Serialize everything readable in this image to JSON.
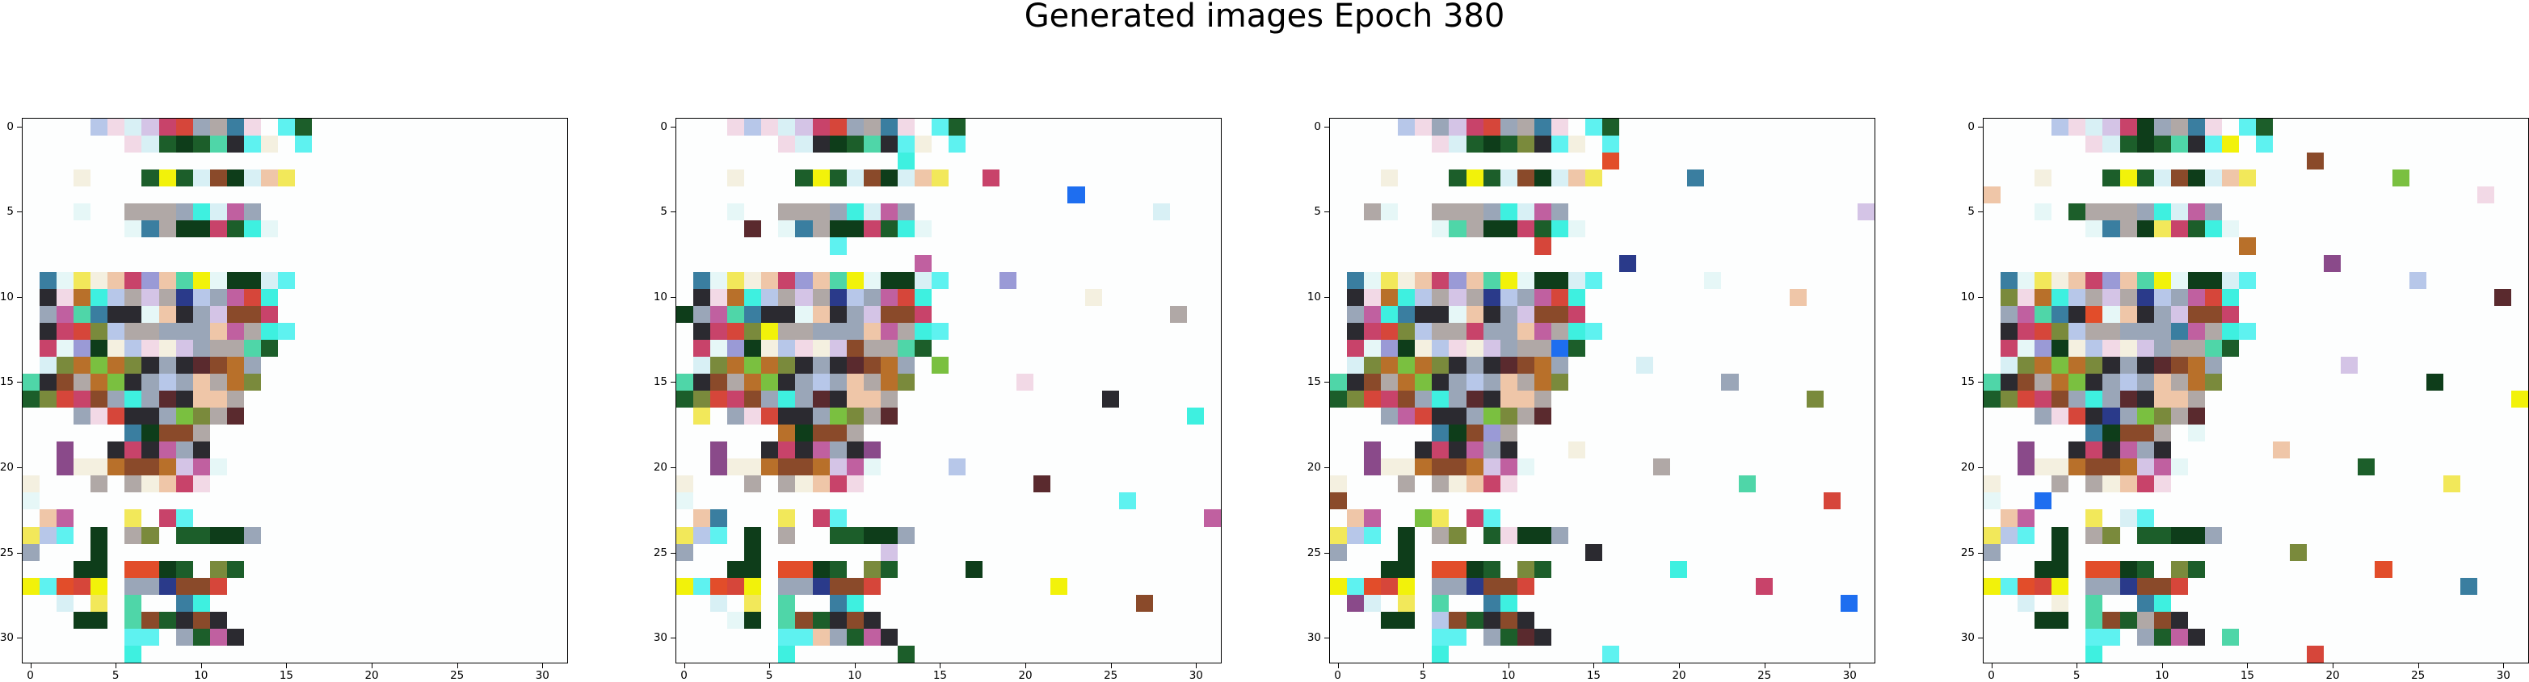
{
  "figure": {
    "suptitle": "Generated images Epoch 380"
  },
  "chart_data": {
    "type": "heatmap",
    "description_note": "",
    "grid": false,
    "panels": 4,
    "image_shape": [
      32,
      32
    ],
    "xlim": [
      -0.5,
      31.5
    ],
    "ylim": [
      31.5,
      -0.5
    ],
    "x_ticks": [
      0,
      5,
      10,
      15,
      20,
      25,
      30
    ],
    "y_ticks": [
      0,
      5,
      10,
      15,
      20,
      25,
      30
    ],
    "x_tick_labels": [
      "0",
      "5",
      "10",
      "15",
      "20",
      "25",
      "30"
    ],
    "y_tick_labels": [
      "0",
      "5",
      "10",
      "15",
      "20",
      "25",
      "30"
    ],
    "palette": [
      "#fdfefe",
      "#e6f7f7",
      "#d8f0f5",
      "#f4f0e0",
      "#f2d9e6",
      "#b7c7e9",
      "#d4c4e6",
      "#efc6a8",
      "#9aa6b8",
      "#b0a8a6",
      "#2b2a30",
      "#5a2a2e",
      "#0e3d1a",
      "#1c5e2a",
      "#7a8a3c",
      "#4fd6a8",
      "#3ef0e0",
      "#5ef2f0",
      "#f2f20a",
      "#f2e85a",
      "#e24d2a",
      "#d6463a",
      "#c8436a",
      "#c060a0",
      "#8a4a2a",
      "#b8702a",
      "#3a7ea0",
      "#2a3a8a",
      "#1e6ef0",
      "#9a9ad6",
      "#7ac040",
      "#8a4a8a"
    ],
    "image_rows": [
      "0000000005040206222108092604001713",
      "0000000000000402131213151017030017",
      "0000000000000000000000000000000000",
      "00000003000000131813022412020719",
      "0000000000000000000000000000000000",
      "00000001000009090908160223080000",
      "00000000000001260912122213160100",
      "00000000000000000000000000000000",
      "000000000000000000000000000000000",
      "0026011903072229071518011212021700",
      "0010042516050906092705082321160000",
      "0008231526101001071008062424220000",
      "0010222114050909080808072309161700",
      "0022012912030504030608090915130000",
      "0002142530251410081011242508000000",
      "1510240925301008050807092514000000",
      "1314212224081608111007070900000000",
      "0000000804211010083014091100000000",
      "0000000000002612242409000000000000",
      "0000310000102210230810000000000000",
      "0000310303252424250623010000000000",
      "0300000009000903072204000000000000",
      "0100000000000000000000000000000000",
      "0007230000001900221700000000000000",
      "1905170012000914001313121208000000",
      "0800000012000000000000000000000000",
      "0000001212002020121300141300000000",
      "1817202118000808272424210000000000",
      "0000020019001500002616000000000000",
      "0000001212001524131024100000000000",
      "0000000000001717000813231000000000",
      "0000000000001600000000000000000000"
    ]
  }
}
